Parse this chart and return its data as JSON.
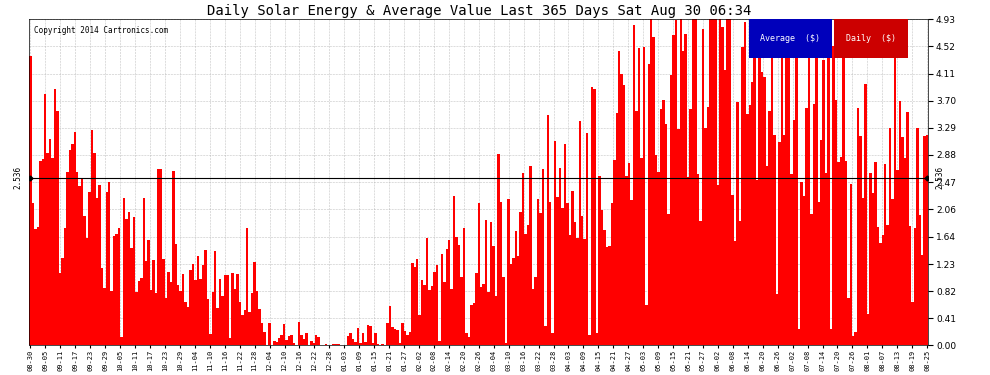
{
  "title": "Daily Solar Energy & Average Value Last 365 Days Sat Aug 30 06:34",
  "copyright": "Copyright 2014 Cartronics.com",
  "average_value": 2.536,
  "average_label": "2.536",
  "bar_color": "#ff0000",
  "average_line_color": "#000000",
  "background_color": "#ffffff",
  "plot_bg_color": "#ffffff",
  "grid_color": "#aaaaaa",
  "yticks": [
    0.0,
    0.41,
    0.82,
    1.23,
    1.64,
    2.06,
    2.47,
    2.88,
    3.29,
    3.7,
    4.11,
    4.52,
    4.93
  ],
  "ylim": [
    0.0,
    4.93
  ],
  "legend_avg_color": "#0000bb",
  "legend_daily_color": "#cc0000",
  "legend_avg_label": "Average  ($)",
  "legend_daily_label": "Daily  ($)",
  "xtick_labels": [
    "08-30",
    "09-05",
    "09-11",
    "09-17",
    "09-23",
    "09-29",
    "10-05",
    "10-11",
    "10-17",
    "10-23",
    "10-29",
    "11-04",
    "11-10",
    "11-16",
    "11-22",
    "11-28",
    "12-04",
    "12-10",
    "12-16",
    "12-22",
    "12-28",
    "01-03",
    "01-09",
    "01-15",
    "01-21",
    "01-27",
    "02-02",
    "02-08",
    "02-14",
    "02-20",
    "02-26",
    "03-04",
    "03-10",
    "03-16",
    "03-22",
    "03-28",
    "04-03",
    "04-09",
    "04-15",
    "04-21",
    "04-27",
    "05-03",
    "05-09",
    "05-15",
    "05-21",
    "05-27",
    "06-02",
    "06-08",
    "06-14",
    "06-20",
    "06-26",
    "07-02",
    "07-08",
    "07-14",
    "07-20",
    "07-26",
    "08-01",
    "08-07",
    "08-13",
    "08-19",
    "08-25"
  ],
  "seed": 12345
}
